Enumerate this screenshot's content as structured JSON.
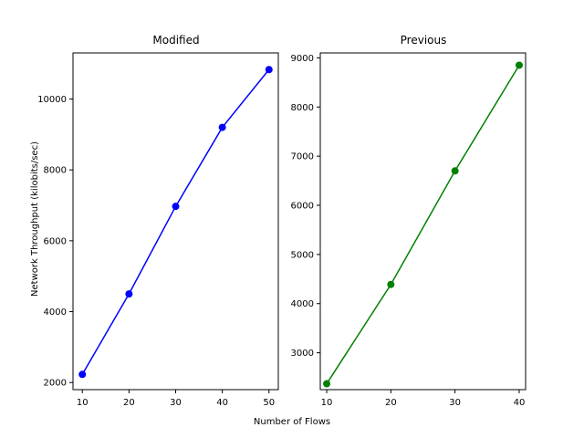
{
  "figure": {
    "xlabel": "Number of Flows",
    "ylabel": "Network Throughput (kilobits/sec)"
  },
  "chart_data": [
    {
      "type": "line",
      "title": "Modified",
      "x": [
        10,
        20,
        30,
        40,
        50
      ],
      "series": [
        {
          "values": [
            2230,
            4500,
            6970,
            9200,
            10830
          ],
          "color": "#0000ff"
        }
      ],
      "xlim": [
        8,
        52
      ],
      "ylim": [
        1800,
        11300
      ],
      "xticks": [
        10,
        20,
        30,
        40,
        50
      ],
      "yticks": [
        2000,
        4000,
        6000,
        8000,
        10000
      ],
      "grid": false,
      "marker": "circle"
    },
    {
      "type": "line",
      "title": "Previous",
      "x": [
        10,
        20,
        30,
        40
      ],
      "series": [
        {
          "values": [
            2370,
            4390,
            6700,
            8850
          ],
          "color": "#008000"
        }
      ],
      "xlim": [
        9,
        41
      ],
      "ylim": [
        2250,
        9100
      ],
      "xticks": [
        10,
        20,
        30,
        40
      ],
      "yticks": [
        3000,
        4000,
        5000,
        6000,
        7000,
        8000,
        9000
      ],
      "grid": false,
      "marker": "circle"
    }
  ]
}
